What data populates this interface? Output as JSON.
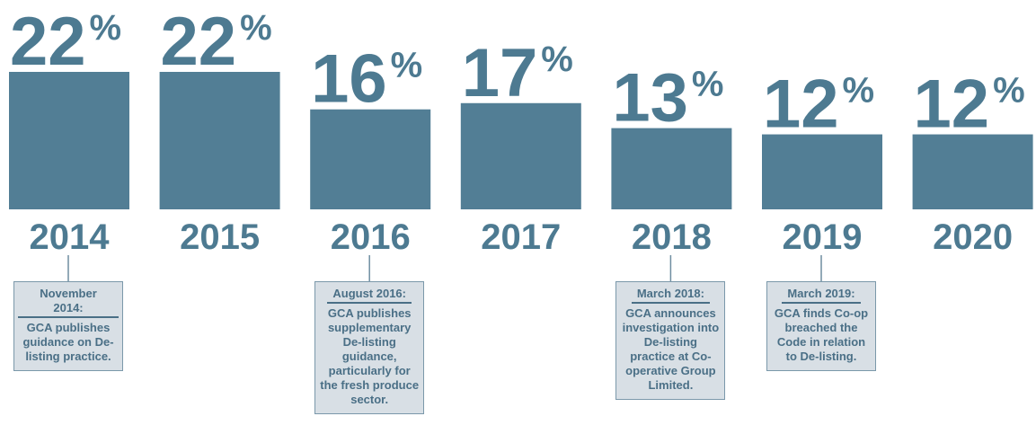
{
  "chart_data": {
    "type": "bar",
    "categories": [
      "2014",
      "2015",
      "2016",
      "2017",
      "2018",
      "2019",
      "2020"
    ],
    "values": [
      22,
      22,
      16,
      17,
      13,
      12,
      12
    ],
    "value_labels": [
      "22%",
      "22%",
      "16%",
      "17%",
      "13%",
      "12%",
      "12%"
    ],
    "color": "#527e95",
    "annotations": [
      {
        "category": "2014",
        "title": "November 2014:",
        "text": "GCA publishes guidance on De-listing practice."
      },
      {
        "category": "2016",
        "title": "August 2016:",
        "text": "GCA publishes supplementary De-listing guidance, particularly for the fresh produce sector."
      },
      {
        "category": "2018",
        "title": "March 2018:",
        "text": "GCA announces investigation into De-listing practice at Co-operative Group Limited."
      },
      {
        "category": "2019",
        "title": "March 2019:",
        "text": "GCA finds Co-op breached the Code in relation to De-listing."
      }
    ]
  }
}
